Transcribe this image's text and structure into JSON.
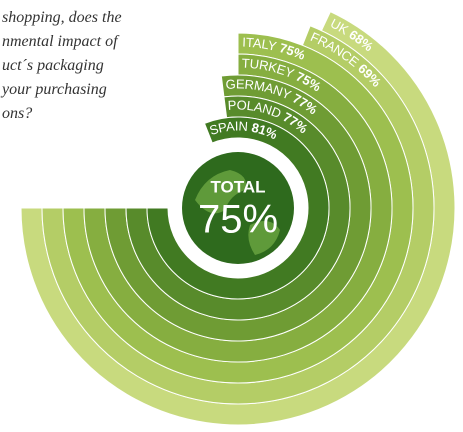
{
  "chart_data": {
    "type": "radial_bar",
    "question": [
      "shopping, does the",
      "nmental impact of",
      "uct´s packaging",
      "your purchasing",
      "ons?"
    ],
    "categories": [
      "UK",
      "FRANCE",
      "ITALY",
      "TURKEY",
      "GERMANY",
      "POLAND",
      "SPAIN"
    ],
    "values": [
      68,
      69,
      75,
      75,
      77,
      77,
      81
    ],
    "value_labels": [
      "68%",
      "69%",
      "75%",
      "75%",
      "77%",
      "77%",
      "81%"
    ],
    "colors": [
      "#c8da7e",
      "#b4cd66",
      "#9dbf4f",
      "#86ae40",
      "#6f9c34",
      "#588b2b",
      "#417a22"
    ],
    "total": {
      "label": "TOTAL",
      "value": 75,
      "value_label": "75%"
    }
  }
}
